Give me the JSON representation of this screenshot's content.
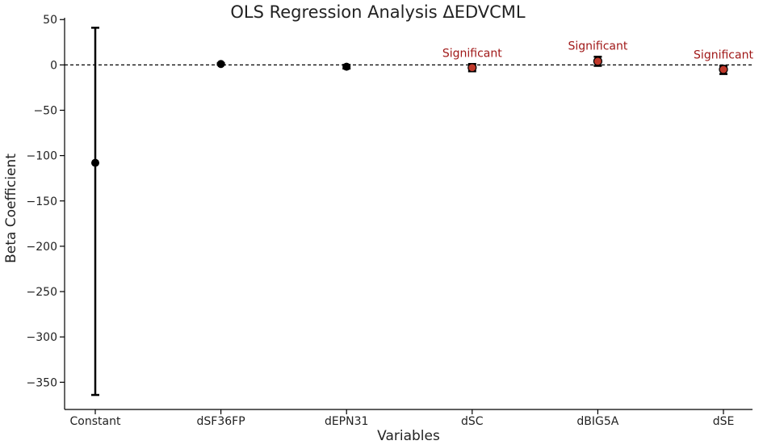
{
  "chart_data": {
    "type": "scatter",
    "title": "OLS Regression Analysis ΔEDVCML",
    "xlabel": "Variables",
    "ylabel": "Beta Coefficient",
    "ylim": [
      -380,
      52
    ],
    "yticks": [
      50,
      0,
      -50,
      -100,
      -150,
      -200,
      -250,
      -300,
      -350
    ],
    "reference_line": 0,
    "grid": false,
    "colors": {
      "default": "#000000",
      "significant": "#c0392b",
      "significant_label": "#a01818"
    },
    "points": [
      {
        "category": "Constant",
        "estimate": -108,
        "ci_low": -364,
        "ci_high": 41,
        "significant": false,
        "label": ""
      },
      {
        "category": "dSF36FP",
        "estimate": 1,
        "ci_low": 0.2,
        "ci_high": 1.8,
        "significant": false,
        "label": ""
      },
      {
        "category": "dEPN31",
        "estimate": -2,
        "ci_low": -4,
        "ci_high": 0,
        "significant": false,
        "label": ""
      },
      {
        "category": "dSC",
        "estimate": -3,
        "ci_low": -7,
        "ci_high": 1,
        "significant": true,
        "label": "Significant"
      },
      {
        "category": "dBIG5A",
        "estimate": 4,
        "ci_low": -1,
        "ci_high": 9,
        "significant": true,
        "label": "Significant"
      },
      {
        "category": "dSE",
        "estimate": -5,
        "ci_low": -10,
        "ci_high": -1,
        "significant": true,
        "label": "Significant"
      }
    ]
  }
}
